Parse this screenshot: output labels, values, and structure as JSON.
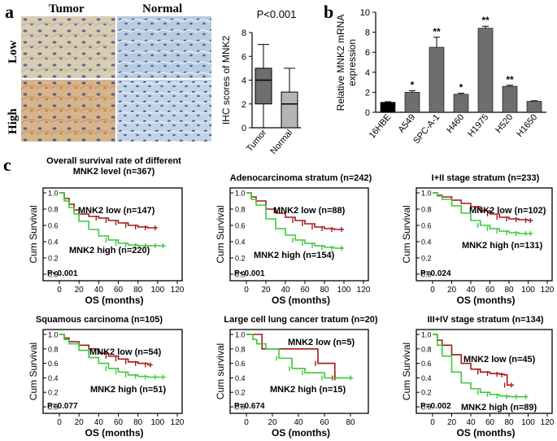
{
  "panel_labels": {
    "a": "a",
    "b": "b",
    "c": "c"
  },
  "ihc_images": {
    "columns": [
      "Tumor",
      "Normal"
    ],
    "rows": [
      "Low",
      "High"
    ]
  },
  "colors": {
    "low_curve": "#A31A1A",
    "high_curve": "#3CC83C",
    "bar_dark": "#000000",
    "bar_gray": "#6E6E6E",
    "box_tumor": "#6E6E6E",
    "box_normal": "#B4B4B4"
  },
  "chart_data": [
    {
      "id": "a-box",
      "type": "box",
      "title": "P<0.001",
      "ylabel": "IHC scores of MNK2",
      "ylim": [
        0,
        8
      ],
      "yticks": [
        0,
        2,
        4,
        6,
        8
      ],
      "categories": [
        "Tumor",
        "Normal"
      ],
      "boxes": [
        {
          "name": "Tumor",
          "min": 0,
          "q1": 2,
          "median": 4,
          "q3": 5,
          "max": 7
        },
        {
          "name": "Normal",
          "min": 0,
          "q1": 0,
          "median": 2,
          "q3": 3,
          "max": 5
        }
      ]
    },
    {
      "id": "b-bar",
      "type": "bar",
      "ylabel": "Relative MNK2 mRNA expression",
      "ylim": [
        0,
        10
      ],
      "yticks": [
        0,
        2,
        4,
        6,
        8,
        10
      ],
      "categories": [
        "16HBE",
        "A549",
        "SPC-A-1",
        "H460",
        "H1975",
        "H520",
        "H1650"
      ],
      "values": [
        1.0,
        2.0,
        6.5,
        1.8,
        8.4,
        2.6,
        1.1
      ],
      "errors": [
        0.05,
        0.15,
        1.0,
        0.1,
        0.2,
        0.1,
        0.05
      ],
      "significance": [
        "",
        "*",
        "**",
        "*",
        "**",
        "**",
        ""
      ]
    },
    {
      "id": "km1",
      "type": "line",
      "title": "Overall survival rate of different MNK2 level (n=367)",
      "title_lines": [
        "Overall survival rate of different",
        "MNK2 level (n=367)"
      ],
      "xlabel": "OS (months)",
      "ylabel": "Cum Survival",
      "xlim": [
        0,
        120
      ],
      "ylim": [
        0,
        1
      ],
      "xticks": [
        "0",
        "20",
        "40",
        "60",
        "80",
        "100",
        "120"
      ],
      "yticks": [
        "0.0",
        "0.2",
        "0.4",
        "0.6",
        "0.8",
        "1.0"
      ],
      "pvalue": "P<0.001",
      "series": [
        {
          "name": "MNK2 low (n=147)",
          "color": "#A31A1A",
          "x": [
            0,
            5,
            10,
            15,
            20,
            30,
            40,
            50,
            60,
            70,
            80,
            90,
            100
          ],
          "y": [
            1.0,
            0.93,
            0.86,
            0.79,
            0.74,
            0.71,
            0.69,
            0.66,
            0.63,
            0.6,
            0.58,
            0.57,
            0.57
          ]
        },
        {
          "name": "MNK2 high (n=220)",
          "color": "#3CC83C",
          "x": [
            0,
            5,
            10,
            15,
            20,
            30,
            40,
            50,
            60,
            70,
            80,
            90,
            100,
            108
          ],
          "y": [
            1.0,
            0.9,
            0.82,
            0.74,
            0.65,
            0.55,
            0.47,
            0.42,
            0.38,
            0.36,
            0.35,
            0.35,
            0.35,
            0.35
          ]
        }
      ]
    },
    {
      "id": "km2",
      "type": "line",
      "title": "Adenocarcinoma stratum (n=242)",
      "title_lines": [
        "Adenocarcinoma stratum (n=242)"
      ],
      "xlabel": "OS (months)",
      "ylabel": "Cum Survival",
      "xlim": [
        0,
        120
      ],
      "ylim": [
        0,
        1
      ],
      "xticks": [
        "0",
        "20",
        "40",
        "60",
        "80",
        "100",
        "120"
      ],
      "yticks": [
        "0.0",
        "0.2",
        "0.4",
        "0.6",
        "0.8",
        "1.0"
      ],
      "pvalue": "P<0.001",
      "series": [
        {
          "name": "MNK2 low (n=88)",
          "color": "#A31A1A",
          "x": [
            0,
            5,
            10,
            20,
            30,
            40,
            50,
            60,
            70,
            80,
            90,
            100
          ],
          "y": [
            1.0,
            0.95,
            0.9,
            0.8,
            0.75,
            0.7,
            0.66,
            0.62,
            0.58,
            0.56,
            0.55,
            0.55
          ]
        },
        {
          "name": "MNK2 high (n=154)",
          "color": "#3CC83C",
          "x": [
            0,
            5,
            10,
            20,
            30,
            40,
            50,
            60,
            70,
            80,
            90,
            100
          ],
          "y": [
            1.0,
            0.92,
            0.85,
            0.68,
            0.56,
            0.48,
            0.42,
            0.38,
            0.35,
            0.33,
            0.32,
            0.32
          ]
        }
      ]
    },
    {
      "id": "km3",
      "type": "line",
      "title": "I+II stage stratum (n=233)",
      "title_lines": [
        "I+II stage stratum (n=233)"
      ],
      "xlabel": "OS (months)",
      "ylabel": "Cum Survival",
      "xlim": [
        0,
        120
      ],
      "ylim": [
        0,
        1
      ],
      "xticks": [
        "0",
        "20",
        "40",
        "60",
        "80",
        "100",
        "120"
      ],
      "yticks": [
        "0.0",
        "0.2",
        "0.4",
        "0.6",
        "0.8",
        "1.0"
      ],
      "pvalue": "P=0.024",
      "series": [
        {
          "name": "MNK2 low (n=102)",
          "color": "#A31A1A",
          "x": [
            0,
            5,
            10,
            20,
            30,
            40,
            50,
            60,
            70,
            80,
            90,
            100,
            105
          ],
          "y": [
            1.0,
            0.97,
            0.95,
            0.91,
            0.87,
            0.83,
            0.78,
            0.74,
            0.7,
            0.68,
            0.67,
            0.66,
            0.66
          ]
        },
        {
          "name": "MNK2 high (n=131)",
          "color": "#3CC83C",
          "x": [
            0,
            5,
            10,
            20,
            30,
            40,
            50,
            60,
            70,
            80,
            90,
            100,
            105
          ],
          "y": [
            1.0,
            0.96,
            0.92,
            0.84,
            0.75,
            0.66,
            0.6,
            0.56,
            0.53,
            0.51,
            0.5,
            0.5,
            0.5
          ]
        }
      ]
    },
    {
      "id": "km4",
      "type": "line",
      "title": "Squamous carcinoma (n=105)",
      "title_lines": [
        "Squamous carcinoma (n=105)"
      ],
      "xlabel": "OS (months)",
      "ylabel": "Cum Survival",
      "xlim": [
        0,
        120
      ],
      "ylim": [
        0,
        1
      ],
      "xticks": [
        "0",
        "20",
        "40",
        "60",
        "80",
        "100",
        "120"
      ],
      "yticks": [
        "0.0",
        "0.2",
        "0.4",
        "0.6",
        "0.8",
        "1.0"
      ],
      "pvalue": "P=0.077",
      "series": [
        {
          "name": "MNK2 low (n=54)",
          "color": "#A31A1A",
          "x": [
            0,
            5,
            10,
            20,
            30,
            40,
            50,
            60,
            70,
            80,
            90,
            95
          ],
          "y": [
            1.0,
            0.95,
            0.9,
            0.85,
            0.8,
            0.74,
            0.7,
            0.66,
            0.62,
            0.6,
            0.58,
            0.58
          ]
        },
        {
          "name": "MNK2 high (n=51)",
          "color": "#3CC83C",
          "x": [
            0,
            5,
            10,
            20,
            30,
            40,
            50,
            60,
            70,
            80,
            90,
            100,
            108
          ],
          "y": [
            1.0,
            0.93,
            0.87,
            0.78,
            0.68,
            0.6,
            0.53,
            0.48,
            0.44,
            0.42,
            0.41,
            0.41,
            0.41
          ]
        }
      ]
    },
    {
      "id": "km5",
      "type": "line",
      "title": "Large cell lung cancer tratum (n=20)",
      "title_lines": [
        "Large cell lung cancer tratum (n=20)"
      ],
      "xlabel": "OS (months)",
      "ylabel": "Cum survival",
      "xlim": [
        0,
        90
      ],
      "ylim": [
        0,
        1
      ],
      "xticks": [
        "0",
        "20",
        "40",
        "60",
        "80"
      ],
      "yticks": [
        "0.0",
        "0.2",
        "0.4",
        "0.6",
        "0.8",
        "1.0"
      ],
      "pvalue": "P=0.674",
      "series": [
        {
          "name": "MNK2 low (n=5)",
          "color": "#A31A1A",
          "x": [
            0,
            12,
            55,
            68,
            70
          ],
          "y": [
            1.0,
            0.8,
            0.6,
            0.4,
            0.4
          ]
        },
        {
          "name": "MNK2 high (n=15)",
          "color": "#3CC83C",
          "x": [
            0,
            5,
            8,
            15,
            25,
            35,
            45,
            60,
            82
          ],
          "y": [
            1.0,
            0.93,
            0.87,
            0.8,
            0.67,
            0.53,
            0.47,
            0.4,
            0.4
          ]
        }
      ]
    },
    {
      "id": "km6",
      "type": "line",
      "title": "III+IV stage stratum (n=134)",
      "title_lines": [
        "III+IV stage stratum (n=134)"
      ],
      "xlabel": "OS (months)",
      "ylabel": "Cum Survival",
      "xlim": [
        0,
        120
      ],
      "ylim": [
        0,
        1
      ],
      "xticks": [
        "0",
        "20",
        "40",
        "60",
        "80",
        "100",
        "120"
      ],
      "yticks": [
        "0.0",
        "0.2",
        "0.4",
        "0.6",
        "0.8",
        "1.0"
      ],
      "pvalue": "P=0.002",
      "series": [
        {
          "name": "MNK2 low (n=45)",
          "color": "#A31A1A",
          "x": [
            0,
            5,
            10,
            20,
            30,
            40,
            50,
            60,
            70,
            75,
            78,
            85
          ],
          "y": [
            1.0,
            0.92,
            0.85,
            0.72,
            0.6,
            0.52,
            0.48,
            0.46,
            0.45,
            0.44,
            0.3,
            0.3
          ]
        },
        {
          "name": "MNK2 high (n=89)",
          "color": "#3CC83C",
          "x": [
            0,
            5,
            10,
            20,
            30,
            40,
            50,
            60,
            70,
            80,
            90,
            100
          ],
          "y": [
            1.0,
            0.85,
            0.7,
            0.48,
            0.33,
            0.25,
            0.2,
            0.17,
            0.15,
            0.14,
            0.14,
            0.14
          ]
        }
      ]
    }
  ]
}
